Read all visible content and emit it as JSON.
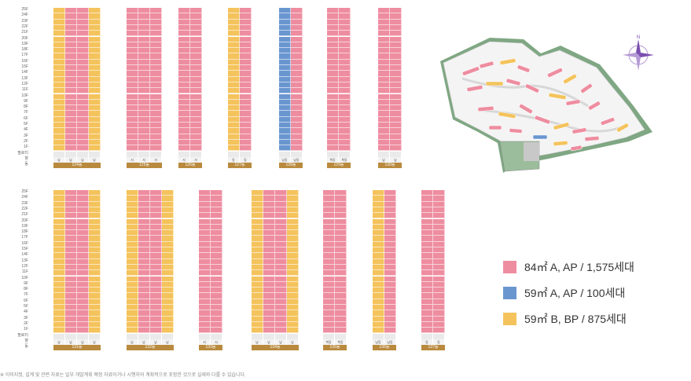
{
  "colors": {
    "pink": "#ee8da0",
    "blue": "#6a96d0",
    "yellow": "#f4c35c",
    "dong_bar": "#b98a3e",
    "site_green": "#7fa783"
  },
  "top_floor_labels": [
    "25F",
    "24F",
    "23F",
    "22F",
    "21F",
    "20F",
    "19F",
    "18F",
    "17F",
    "16F",
    "15F",
    "14F",
    "13F",
    "12F",
    "11F",
    "10F",
    "9F",
    "8F",
    "7F",
    "6F",
    "5F",
    "4F",
    "3F",
    "2F",
    "1F",
    "필로티",
    "향",
    "동"
  ],
  "bottom_floor_labels": [
    "25F",
    "24F",
    "23F",
    "22F",
    "21F",
    "20F",
    "19F",
    "18F",
    "17F",
    "16F",
    "15F",
    "14F",
    "13F",
    "12F",
    "11F",
    "10F",
    "9F",
    "8F",
    "7F",
    "6F",
    "5F",
    "4F",
    "3F",
    "2F",
    "1F",
    "필로티",
    "향",
    "동"
  ],
  "top_buildings": [
    {
      "dong": "124동",
      "directions": [
        "남",
        "남",
        "남",
        "남"
      ]
    },
    {
      "dong": "125동",
      "directions": [
        "서",
        "서",
        "서"
      ]
    },
    {
      "dong": "126동",
      "directions": [
        "서",
        "서"
      ]
    },
    {
      "dong": "127동",
      "directions": [
        "동",
        "동"
      ]
    },
    {
      "dong": "128동",
      "directions": [
        "남동",
        "남동"
      ]
    },
    {
      "dong": "129동",
      "directions": [
        "북동",
        "북동"
      ]
    },
    {
      "dong": "130동",
      "directions": [
        "남",
        "남"
      ]
    }
  ],
  "bottom_buildings": [
    {
      "dong": "131동",
      "directions": [
        "남",
        "남",
        "남",
        "남"
      ]
    },
    {
      "dong": "132동",
      "directions": [
        "남",
        "남",
        "남",
        "남"
      ]
    },
    {
      "dong": "133동",
      "directions": [
        "서",
        "서"
      ]
    },
    {
      "dong": "134동",
      "directions": [
        "남",
        "남",
        "남",
        "남"
      ]
    },
    {
      "dong": "135동",
      "directions": [
        "북동",
        "북동"
      ]
    },
    {
      "dong": "136동",
      "directions": [
        "남동",
        "남동"
      ]
    },
    {
      "dong": "137동",
      "directions": [
        "동",
        "동"
      ]
    }
  ],
  "legend": [
    {
      "label": "84㎡ A, AP / 1,575세대",
      "color_key": "pink"
    },
    {
      "label": "59㎡ A, AP / 100세대",
      "color_key": "blue"
    },
    {
      "label": "59㎡ B, BP / 875세대",
      "color_key": "yellow"
    }
  ],
  "compass": {
    "north": "N"
  },
  "footnote": "※ 이미지컷, 설계 및 관련 자료는 일부 개발계획 예정 자료이거나 시행처의 계획적으로 포함한 것으로 실제와 다를 수 있습니다."
}
